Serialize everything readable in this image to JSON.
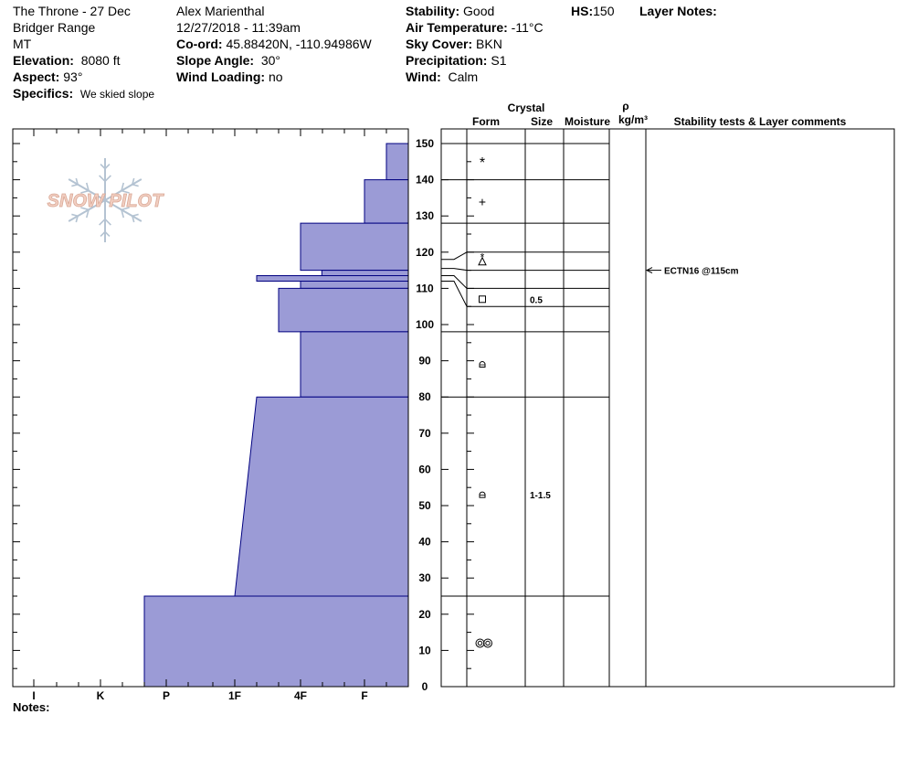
{
  "header": {
    "location": "The Throne - 27 Dec",
    "range": "Bridger Range",
    "state": "MT",
    "elevation": {
      "label": "Elevation:",
      "value": "8080 ft"
    },
    "aspect": {
      "label": "Aspect:",
      "value": "93°"
    },
    "specifics": {
      "label": "Specifics:",
      "value": "We skied slope"
    },
    "observer": "Alex Marienthal",
    "datetime": "12/27/2018 - 11:39am",
    "coord": {
      "label": "Co-ord:",
      "value": "45.88420N, -110.94986W"
    },
    "slope_angle": {
      "label": "Slope Angle:",
      "value": "30°"
    },
    "wind_loading": {
      "label": "Wind Loading:",
      "value": "no"
    },
    "stability": {
      "label": "Stability:",
      "value": "Good"
    },
    "air_temp": {
      "label": "Air Temperature:",
      "value": "-11°C"
    },
    "sky_cover": {
      "label": "Sky Cover:",
      "value": "BKN"
    },
    "precipitation": {
      "label": "Precipitation:",
      "value": "S1"
    },
    "wind": {
      "label": "Wind:",
      "value": "Calm"
    },
    "hs": {
      "label": "HS:",
      "value": "150"
    },
    "layer_notes": {
      "label": "Layer Notes:"
    }
  },
  "notes_label": "Notes:",
  "logo_text": "SNOW PILOT",
  "colors": {
    "hardness_fill": "#9b9bd6",
    "hardness_stroke": "#000080",
    "logo_text": "#f2cfc2",
    "logo_flake": "#b4c3d2"
  },
  "chart_data": {
    "type": "hardness-profile",
    "hardness_axis": {
      "categories": [
        "I",
        "K",
        "P",
        "1F",
        "4F",
        "F"
      ]
    },
    "depth_axis": {
      "min": 0,
      "max": 150,
      "unit": "cm",
      "ticks": [
        0,
        10,
        20,
        30,
        40,
        50,
        60,
        70,
        80,
        90,
        100,
        110,
        120,
        130,
        140,
        150
      ]
    },
    "hardness_layers": [
      {
        "bottom": 140,
        "top": 150,
        "hardness_bottom": "F+",
        "hardness_top": "F+"
      },
      {
        "bottom": 128,
        "top": 140,
        "hardness_bottom": "F",
        "hardness_top": "F"
      },
      {
        "bottom": 115,
        "top": 128,
        "hardness_bottom": "4F",
        "hardness_top": "4F"
      },
      {
        "bottom": 113.5,
        "top": 115,
        "hardness_bottom": "4F+",
        "hardness_top": "4F+"
      },
      {
        "bottom": 112,
        "top": 113.5,
        "hardness_bottom": "1F+",
        "hardness_top": "1F+"
      },
      {
        "bottom": 110,
        "top": 112,
        "hardness_bottom": "4F",
        "hardness_top": "4F"
      },
      {
        "bottom": 98,
        "top": 110,
        "hardness_bottom": "4F-",
        "hardness_top": "4F-"
      },
      {
        "bottom": 80,
        "top": 98,
        "hardness_bottom": "4F",
        "hardness_top": "4F"
      },
      {
        "bottom": 25,
        "top": 80,
        "hardness_bottom": "1F",
        "hardness_top": "1F+"
      },
      {
        "bottom": 0,
        "top": 25,
        "hardness_bottom": "P-",
        "hardness_top": "P-"
      }
    ],
    "layer_boundaries": [
      150,
      140,
      128,
      120,
      115,
      110,
      105,
      98,
      80,
      25
    ],
    "layer_boundary_depth_positions": [
      150,
      140,
      128,
      120,
      118,
      113.5,
      110,
      105,
      98,
      80,
      25
    ],
    "columns": {
      "crystal": "Crystal",
      "form": "Form",
      "size": "Size",
      "moisture": "Moisture",
      "rho": "ρ",
      "density_unit": "kg/m³",
      "comments": "Stability tests & Layer comments"
    },
    "grain_forms": [
      {
        "depth": 145,
        "symbol": "new-snow",
        "size": ""
      },
      {
        "depth": 134,
        "symbol": "decomposing-fragments",
        "size": ""
      },
      {
        "depth": 118,
        "symbol": "new-snow-decomposing",
        "size": ""
      },
      {
        "depth": 107,
        "symbol": "faceted-crystals",
        "size": "0.5"
      },
      {
        "depth": 89,
        "symbol": "rounding-facets",
        "size": ""
      },
      {
        "depth": 53,
        "symbol": "rounding-facets",
        "size": "1-1.5"
      },
      {
        "depth": 12,
        "symbol": "melt-forms",
        "size": ""
      }
    ],
    "stability_tests": [
      {
        "depth": 115,
        "text": "ECTN16 @115cm"
      }
    ]
  }
}
